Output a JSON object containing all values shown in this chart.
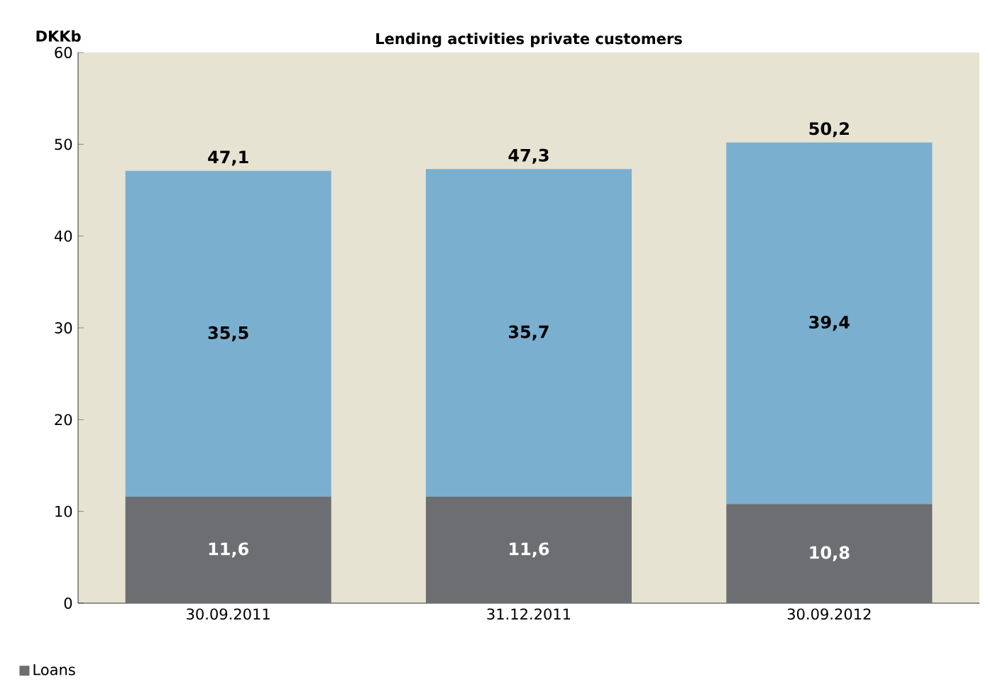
{
  "chart_data": {
    "type": "bar",
    "title": "Lending activities private customers",
    "ylabel": "DKKb",
    "stacked": true,
    "categories": [
      "30.09.2011",
      "31.12.2011",
      "30.09.2012"
    ],
    "series": [
      {
        "name": "Loans",
        "color": "#6d6e71",
        "values": [
          11.6,
          11.6,
          10.8
        ],
        "value_labels": [
          "11,6",
          "11,6",
          "10,8"
        ]
      },
      {
        "color": "#7bafcf",
        "values": [
          35.5,
          35.7,
          39.4
        ],
        "value_labels": [
          "35,5",
          "35,7",
          "39,4"
        ]
      }
    ],
    "totals": [
      "47,1",
      "47,3",
      "50,2"
    ],
    "ylim": [
      0,
      60
    ],
    "yticks": [
      0,
      10,
      20,
      30,
      40,
      50,
      60
    ],
    "legend": "bottom left"
  }
}
